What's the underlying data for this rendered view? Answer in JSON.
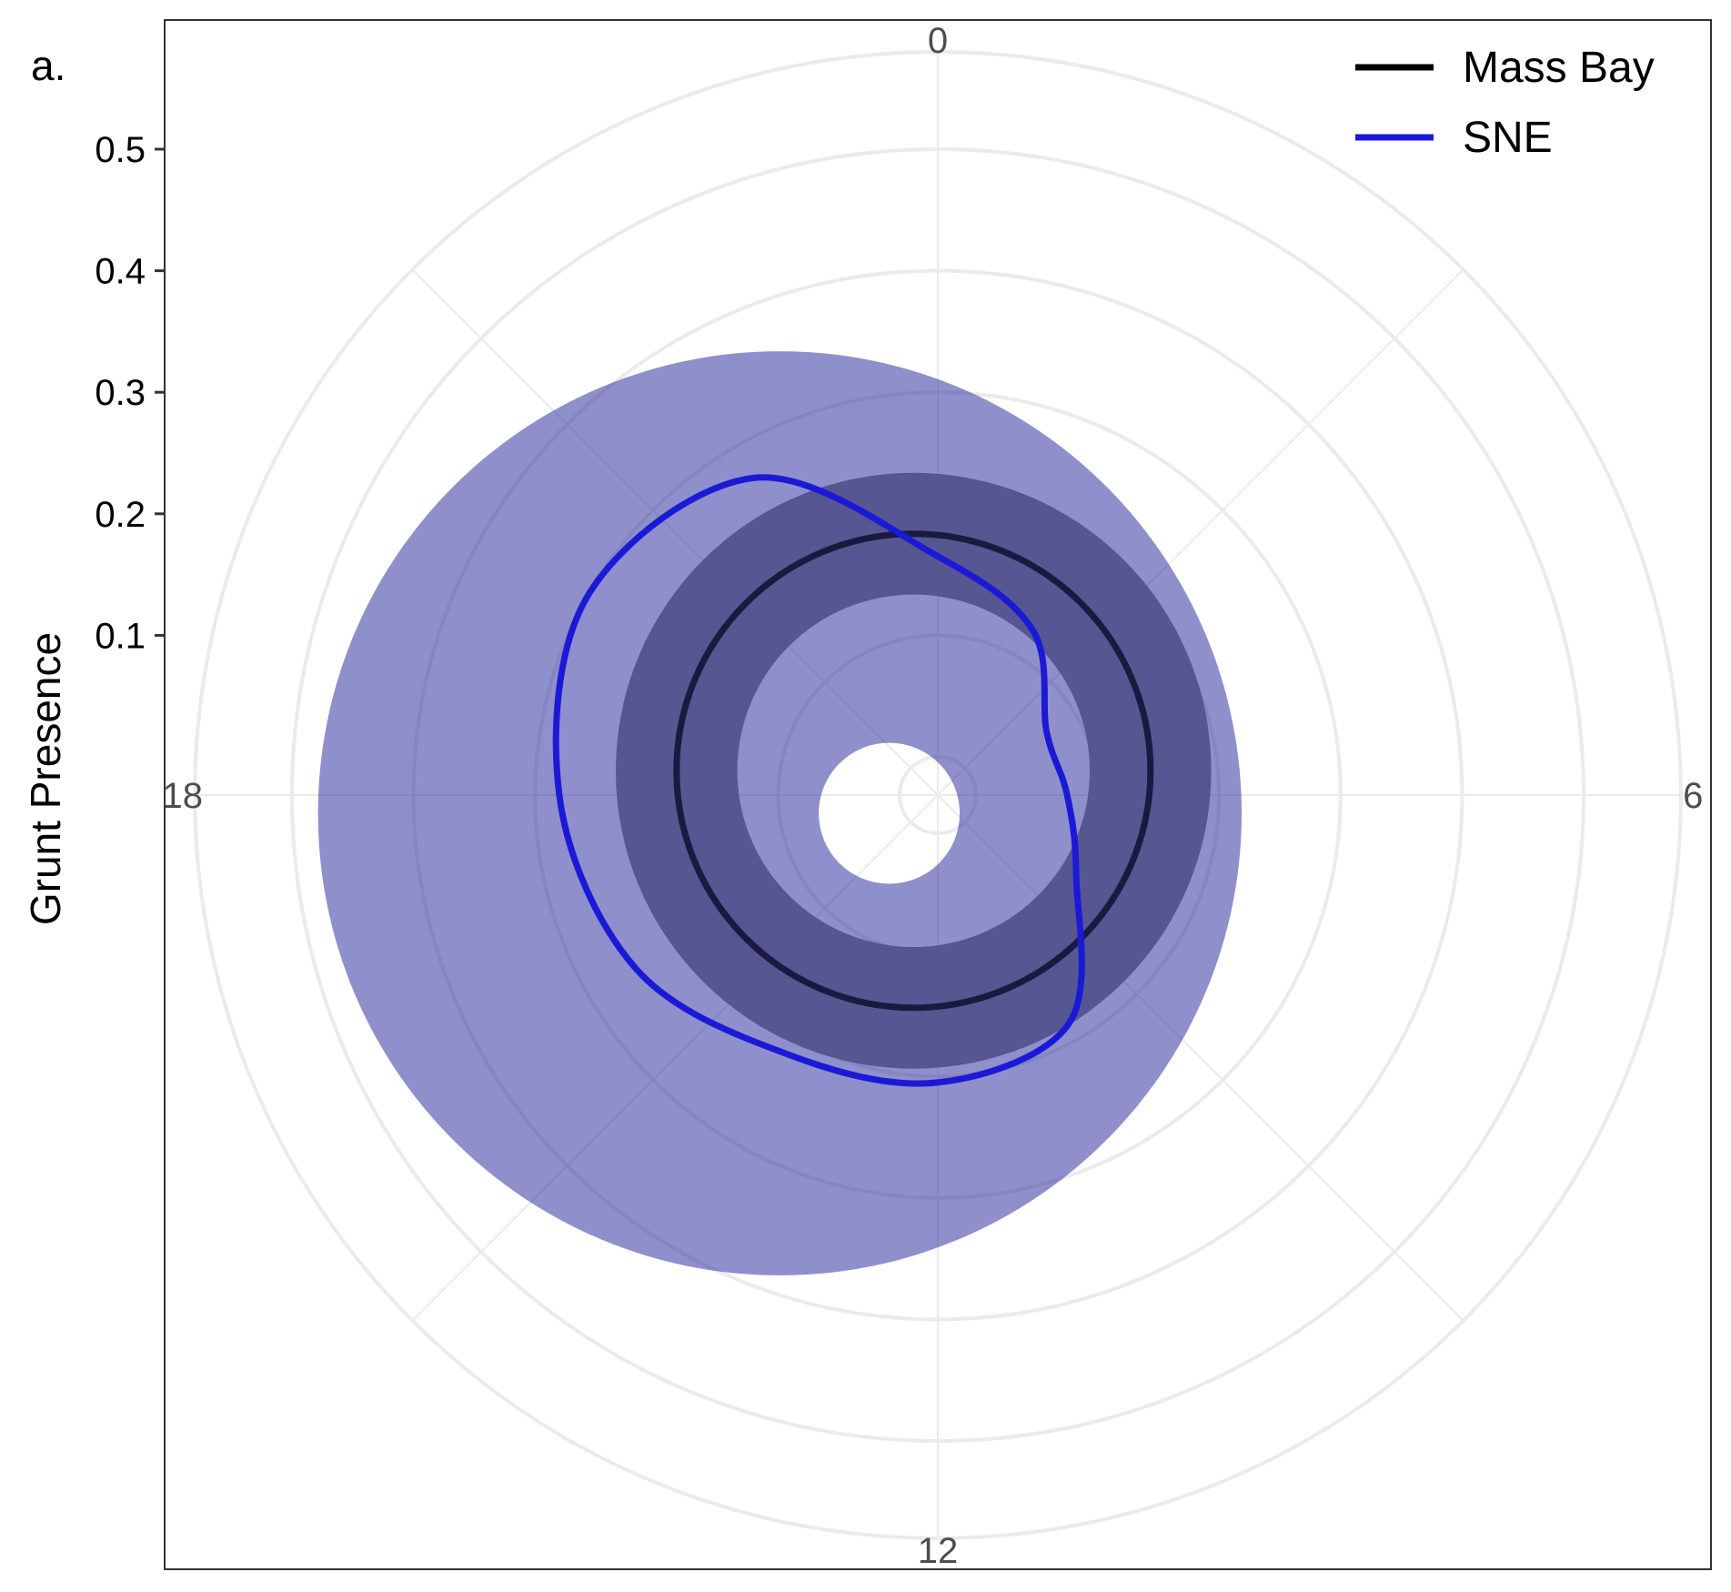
{
  "chart_data": {
    "type": "line",
    "panel_label": "a.",
    "ylabel": "Grunt Presence",
    "y_ticks": [
      "0.1",
      "0.2",
      "0.3",
      "0.4",
      "0.5"
    ],
    "theta_ticks": [
      "0",
      "6",
      "12",
      "18"
    ],
    "coordinate_system": "polar",
    "theta_unit": "hour of day",
    "theta_range": [
      0,
      24
    ],
    "r_range": [
      0,
      0.58
    ],
    "grid": true,
    "legend_position": "top-right",
    "series": [
      {
        "name": "Mass Bay",
        "color": "#000000",
        "band_color": "#808080",
        "center_offset": [
          -0.02,
          0.02
        ],
        "radius": 0.195,
        "band_inner": 0.145,
        "band_outer": 0.245
      },
      {
        "name": "SNE",
        "color": "#1a1ad6",
        "band_color": "#1f1f99",
        "x": [
          0,
          2,
          4,
          6,
          8,
          10,
          12,
          14,
          16,
          18,
          20,
          22,
          24
        ],
        "y": [
          0.165,
          0.125,
          0.072,
          0.075,
          0.1,
          0.185,
          0.205,
          0.215,
          0.255,
          0.28,
          0.3,
          0.27,
          0.165
        ],
        "band": {
          "center_offset": [
            -0.13,
            -0.015
          ],
          "radius": 0.38,
          "hole_center_offset": [
            -0.04,
            -0.015
          ],
          "hole_radius": 0.058
        }
      }
    ]
  }
}
